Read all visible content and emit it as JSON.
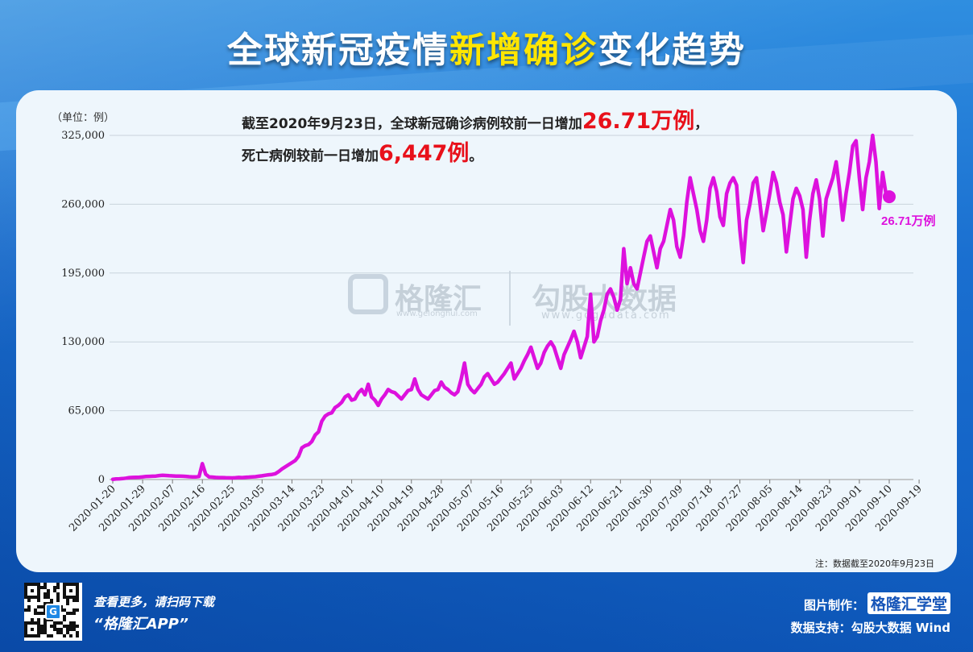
{
  "title": {
    "part1": "全球新冠疫情",
    "highlight": "新增确诊",
    "part2": "变化趋势"
  },
  "unit_label": "（单位：例）",
  "headline": {
    "line1_prefix": "截至2020年9月23日，全球新冠确诊病例较前一日增加",
    "line1_value": "26.71万例",
    "line1_suffix": "，",
    "line2_prefix": "死亡病例较前一日增加",
    "line2_value": "6,447例",
    "line2_suffix": "。"
  },
  "note": "注：数据截至2020年9月23日",
  "watermark": {
    "brand": "格隆汇",
    "brand_url": "www.gelonghui.com",
    "right": "勾股大数据",
    "right_url": "www.gogudata.com"
  },
  "footer": {
    "line1": "查看更多，请扫码下载",
    "line2": "“格隆汇APP”",
    "credit_label": "图片制作：",
    "credit_brand": "格隆汇学堂",
    "data_source": "数据支持：勾股大数据 Wind"
  },
  "colors": {
    "line": "#dd11dd",
    "accent": "#e8101a",
    "highlight": "#ffe600",
    "brand_blue": "#1565c0"
  },
  "icons": {
    "qr": "qr-code-icon",
    "watermark": "gelonghui-logo-icon"
  },
  "chart_data": {
    "type": "line",
    "title": "全球新冠疫情新增确诊变化趋势",
    "ylabel": "（单位：例）",
    "ylim": [
      0,
      325000
    ],
    "yticks": [
      0,
      65000,
      130000,
      195000,
      260000,
      325000
    ],
    "ytick_labels": [
      "0",
      "65,000",
      "130,000",
      "195,000",
      "260,000",
      "325,000"
    ],
    "start_date": "2020-01-20",
    "xtick_labels": [
      "2020-01-20",
      "2020-01-29",
      "2020-02-07",
      "2020-02-16",
      "2020-02-25",
      "2020-03-05",
      "2020-03-14",
      "2020-03-23",
      "2020-04-01",
      "2020-04-10",
      "2020-04-19",
      "2020-04-28",
      "2020-05-07",
      "2020-05-16",
      "2020-05-25",
      "2020-06-03",
      "2020-06-12",
      "2020-06-21",
      "2020-06-30",
      "2020-07-09",
      "2020-07-18",
      "2020-07-27",
      "2020-08-05",
      "2020-08-14",
      "2020-08-23",
      "2020-09-01",
      "2020-09-10",
      "2020-09-19"
    ],
    "end_label": "26.71万例",
    "grid": true,
    "series": [
      {
        "name": "",
        "values": [
          200,
          500,
          700,
          900,
          1300,
          1800,
          2000,
          2100,
          2200,
          2500,
          2800,
          3000,
          3100,
          3300,
          3700,
          4000,
          3800,
          3600,
          3400,
          3300,
          3200,
          3100,
          3000,
          2700,
          2500,
          2400,
          2800,
          15000,
          5000,
          2500,
          2300,
          2000,
          1800,
          1800,
          1700,
          1600,
          1500,
          1700,
          2000,
          1800,
          2100,
          2300,
          2500,
          2700,
          3100,
          3500,
          4000,
          4500,
          4800,
          5500,
          7500,
          10000,
          12000,
          14000,
          16000,
          18000,
          22000,
          30000,
          32000,
          33000,
          36000,
          42000,
          45000,
          55000,
          60000,
          62000,
          63000,
          68000,
          70000,
          73000,
          78000,
          80000,
          75000,
          76000,
          82000,
          85000,
          80000,
          90000,
          78000,
          75000,
          70000,
          76000,
          80000,
          85000,
          83000,
          82000,
          79000,
          76000,
          80000,
          84000,
          85000,
          95000,
          85000,
          80000,
          78000,
          76000,
          80000,
          84000,
          85000,
          92000,
          87000,
          85000,
          82000,
          80000,
          83000,
          95000,
          110000,
          90000,
          85000,
          82000,
          86000,
          90000,
          97000,
          100000,
          95000,
          90000,
          92000,
          96000,
          100000,
          105000,
          110000,
          95000,
          100000,
          105000,
          112000,
          118000,
          125000,
          115000,
          105000,
          110000,
          120000,
          126000,
          130000,
          125000,
          115000,
          105000,
          118000,
          125000,
          132000,
          140000,
          130000,
          115000,
          125000,
          135000,
          175000,
          130000,
          135000,
          150000,
          160000,
          175000,
          180000,
          172000,
          160000,
          170000,
          218000,
          185000,
          200000,
          185000,
          180000,
          195000,
          210000,
          225000,
          230000,
          215000,
          200000,
          218000,
          225000,
          240000,
          255000,
          245000,
          220000,
          210000,
          230000,
          262000,
          285000,
          270000,
          255000,
          235000,
          225000,
          245000,
          275000,
          285000,
          272000,
          248000,
          240000,
          270000,
          280000,
          285000,
          278000,
          235000,
          205000,
          245000,
          260000,
          280000,
          285000,
          262000,
          235000,
          252000,
          270000,
          290000,
          280000,
          262000,
          250000,
          215000,
          240000,
          265000,
          275000,
          268000,
          255000,
          210000,
          245000,
          270000,
          283000,
          265000,
          230000,
          265000,
          275000,
          285000,
          300000,
          275000,
          245000,
          270000,
          290000,
          315000,
          320000,
          285000,
          255000,
          285000,
          300000,
          325000,
          300000,
          256000,
          290000,
          270000,
          267100
        ]
      }
    ]
  }
}
